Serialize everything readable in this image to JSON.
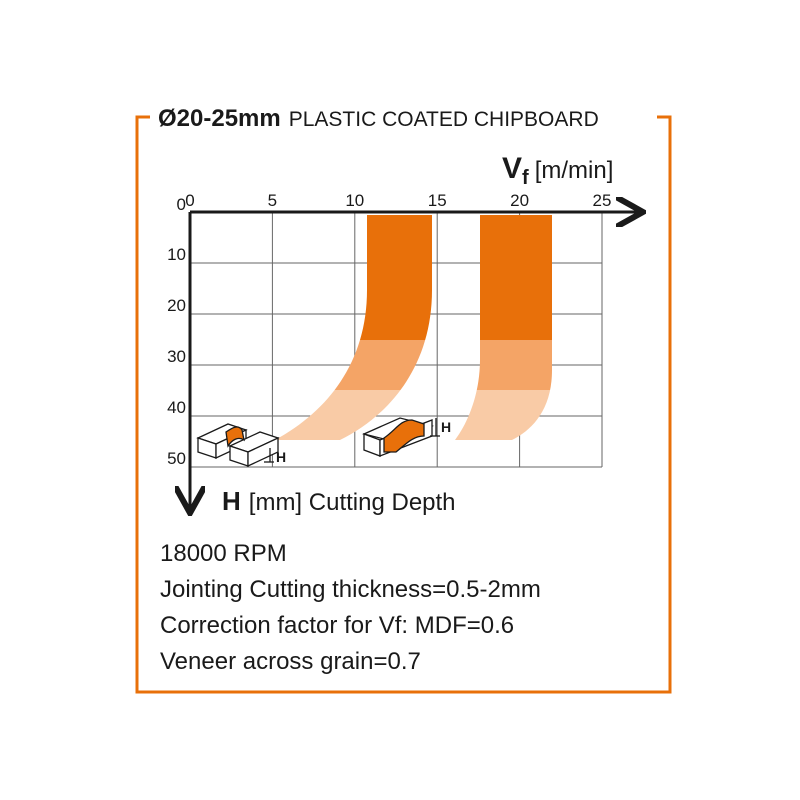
{
  "title": {
    "size": "Ø20-25mm",
    "material": "PLASTIC COATED CHIPBOARD"
  },
  "x_axis": {
    "symbol": "V",
    "subscript": "f",
    "unit": "[m/min]",
    "ticks": [
      0,
      5,
      10,
      15,
      20,
      25
    ]
  },
  "y_axis": {
    "symbol": "H",
    "label": "[mm] Cutting Depth",
    "ticks": [
      0,
      10,
      20,
      30,
      40,
      50
    ]
  },
  "icons": {
    "left_label": "H",
    "right_label": "H"
  },
  "notes": [
    "18000 RPM",
    "Jointing Cutting thickness=0.5-2mm",
    "Correction factor for Vf: MDF=0.6",
    "Veneer across grain=0.7"
  ]
}
